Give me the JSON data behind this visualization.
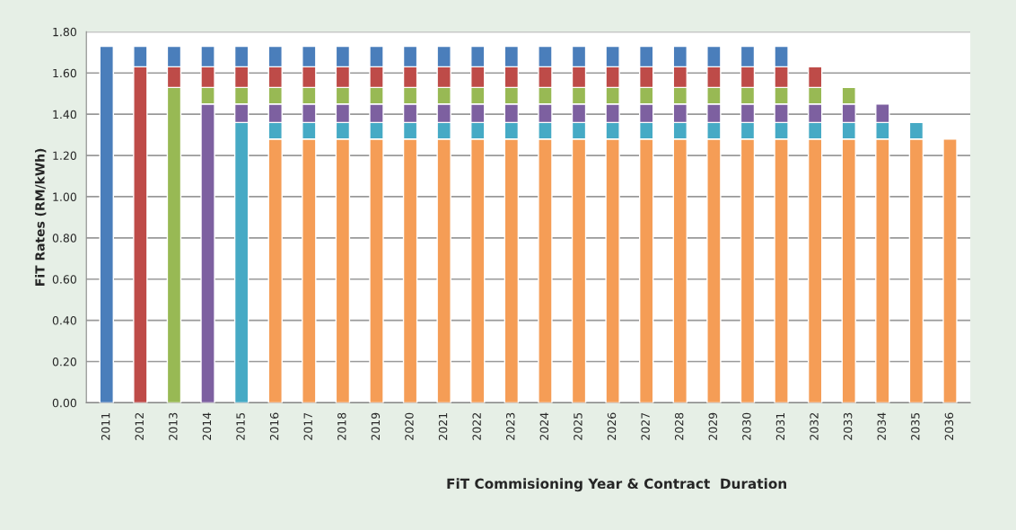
{
  "chart_data": {
    "type": "bar",
    "stacked": true,
    "xlabel": "FiT Commisioning Year & Contract  Duration",
    "ylabel": "FiT Rates (RM/kWh)",
    "categories": [
      "2011",
      "2012",
      "2013",
      "2014",
      "2015",
      "2016",
      "2017",
      "2018",
      "2019",
      "2020",
      "2021",
      "2022",
      "2023",
      "2024",
      "2025",
      "2026",
      "2027",
      "2028",
      "2029",
      "2030",
      "2031",
      "2032",
      "2033",
      "2034",
      "2035",
      "2036"
    ],
    "series": [
      {
        "color": "#f59d56",
        "values": [
          null,
          null,
          null,
          null,
          null,
          1.28,
          1.28,
          1.28,
          1.28,
          1.28,
          1.28,
          1.28,
          1.28,
          1.28,
          1.28,
          1.28,
          1.28,
          1.28,
          1.28,
          1.28,
          1.28,
          1.28,
          1.28,
          1.28,
          1.28,
          1.28
        ]
      },
      {
        "color": "#46aac5",
        "values": [
          null,
          null,
          null,
          null,
          1.36,
          0.08,
          0.08,
          0.08,
          0.08,
          0.08,
          0.08,
          0.08,
          0.08,
          0.08,
          0.08,
          0.08,
          0.08,
          0.08,
          0.08,
          0.08,
          0.08,
          0.08,
          0.08,
          0.08,
          0.08,
          null
        ]
      },
      {
        "color": "#7d60a0",
        "values": [
          null,
          null,
          null,
          1.45,
          0.09,
          0.09,
          0.09,
          0.09,
          0.09,
          0.09,
          0.09,
          0.09,
          0.09,
          0.09,
          0.09,
          0.09,
          0.09,
          0.09,
          0.09,
          0.09,
          0.09,
          0.09,
          0.09,
          0.09,
          null,
          null
        ]
      },
      {
        "color": "#98b954",
        "values": [
          null,
          null,
          1.53,
          0.08,
          0.08,
          0.08,
          0.08,
          0.08,
          0.08,
          0.08,
          0.08,
          0.08,
          0.08,
          0.08,
          0.08,
          0.08,
          0.08,
          0.08,
          0.08,
          0.08,
          0.08,
          0.08,
          0.08,
          null,
          null,
          null
        ]
      },
      {
        "color": "#be4b48",
        "values": [
          null,
          1.63,
          0.1,
          0.1,
          0.1,
          0.1,
          0.1,
          0.1,
          0.1,
          0.1,
          0.1,
          0.1,
          0.1,
          0.1,
          0.1,
          0.1,
          0.1,
          0.1,
          0.1,
          0.1,
          0.1,
          0.1,
          null,
          null,
          null,
          null
        ]
      },
      {
        "color": "#4a7ebb",
        "values": [
          1.73,
          0.1,
          0.1,
          0.1,
          0.1,
          0.1,
          0.1,
          0.1,
          0.1,
          0.1,
          0.1,
          0.1,
          0.1,
          0.1,
          0.1,
          0.1,
          0.1,
          0.1,
          0.1,
          0.1,
          0.1,
          null,
          null,
          null,
          null,
          null
        ]
      }
    ],
    "ylim": [
      0,
      1.8
    ],
    "yticks": [
      {
        "value": 0,
        "label": "0.00"
      },
      {
        "value": 0.2,
        "label": "0.20"
      },
      {
        "value": 0.4,
        "label": "0.40"
      },
      {
        "value": 0.6,
        "label": "0.60"
      },
      {
        "value": 0.8,
        "label": "0.80"
      },
      {
        "value": 1.0,
        "label": "1.00"
      },
      {
        "value": 1.2,
        "label": "1.20"
      },
      {
        "value": 1.4,
        "label": "1.40"
      },
      {
        "value": 1.6,
        "label": "1.60"
      },
      {
        "value": 1.8,
        "label": "1.80"
      }
    ],
    "grid": "y",
    "legend": false
  }
}
